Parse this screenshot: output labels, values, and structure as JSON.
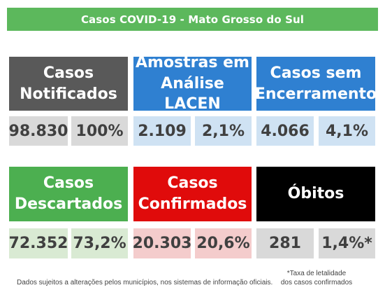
{
  "title": "Casos COVID-19 - Mato Grosso do Sul",
  "colors": {
    "title_bg": "#5cb85c",
    "notificados": "#595959",
    "amostras": "#2f80d1",
    "sem_encerramento": "#2f80d1",
    "descartados": "#4caf50",
    "confirmados": "#e00b0b",
    "obitos": "#000000",
    "value_gray": "#d9d9d9",
    "value_blue": "#cfe2f3",
    "value_green": "#d9ead3",
    "value_pink": "#f4cccc"
  },
  "row1": {
    "notificados": {
      "label": "Casos\nNotificados",
      "count": "98.830",
      "percent": "100%"
    },
    "amostras": {
      "label": "Amostras em\nAnálise LACEN",
      "count": "2.109",
      "percent": "2,1%"
    },
    "sem_encerramento": {
      "label": "Casos sem\nEncerramento",
      "count": "4.066",
      "percent": "4,1%"
    }
  },
  "row2": {
    "descartados": {
      "label": "Casos\nDescartados",
      "count": "72.352",
      "percent": "73,2%"
    },
    "confirmados": {
      "label": "Casos\nConfirmados",
      "count": "20.303",
      "percent": "20,6%"
    },
    "obitos": {
      "label": "Óbitos",
      "count": "281",
      "percent": "1,4%*"
    }
  },
  "footer": {
    "disclaimer": "Dados sujeitos a alterações pelos municípios, nos sistemas de informação oficiais.",
    "footnote_line1": "*Taxa de letalidade",
    "footnote_line2": "dos casos confirmados"
  }
}
